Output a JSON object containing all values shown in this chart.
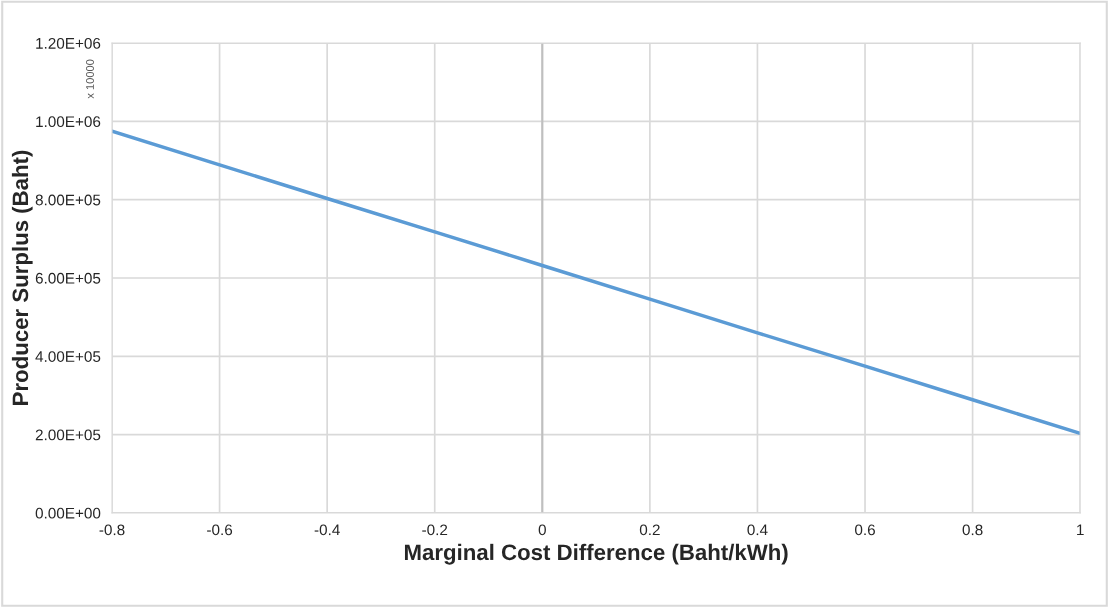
{
  "chart_data": {
    "type": "line",
    "xlabel": "Marginal Cost Difference (Baht/kWh)",
    "ylabel": "Producer Surplus (Baht)",
    "annotations": [
      "x 10000"
    ],
    "x": [
      -0.8,
      -0.6,
      -0.4,
      -0.2,
      0,
      0.2,
      0.4,
      0.6,
      0.8,
      1
    ],
    "series": [
      {
        "color": "#5b9bd5",
        "values": [
          975000,
          889000,
          803000,
          718000,
          632000,
          546000,
          460000,
          375000,
          289000,
          203000
        ]
      }
    ],
    "xlim": [
      -0.8,
      1
    ],
    "xticks": [
      -0.8,
      -0.6,
      -0.4,
      -0.2,
      0,
      0.2,
      0.4,
      0.6,
      0.8,
      1
    ],
    "ylim": [
      0,
      1200000
    ],
    "yticks": [
      {
        "value": 0,
        "label": "0.00E+00"
      },
      {
        "value": 200000,
        "label": "2.00E+05"
      },
      {
        "value": 400000,
        "label": "4.00E+05"
      },
      {
        "value": 600000,
        "label": "6.00E+05"
      },
      {
        "value": 800000,
        "label": "8.00E+05"
      },
      {
        "value": 1000000,
        "label": "1.00E+06"
      },
      {
        "value": 1200000,
        "label": "1.20E+06"
      }
    ],
    "ref_lines": [
      {
        "axis": "x",
        "value": 0,
        "color": "#bfbfbf"
      }
    ],
    "grid": true,
    "legend": false,
    "marker": "none",
    "line_style": "solid"
  }
}
